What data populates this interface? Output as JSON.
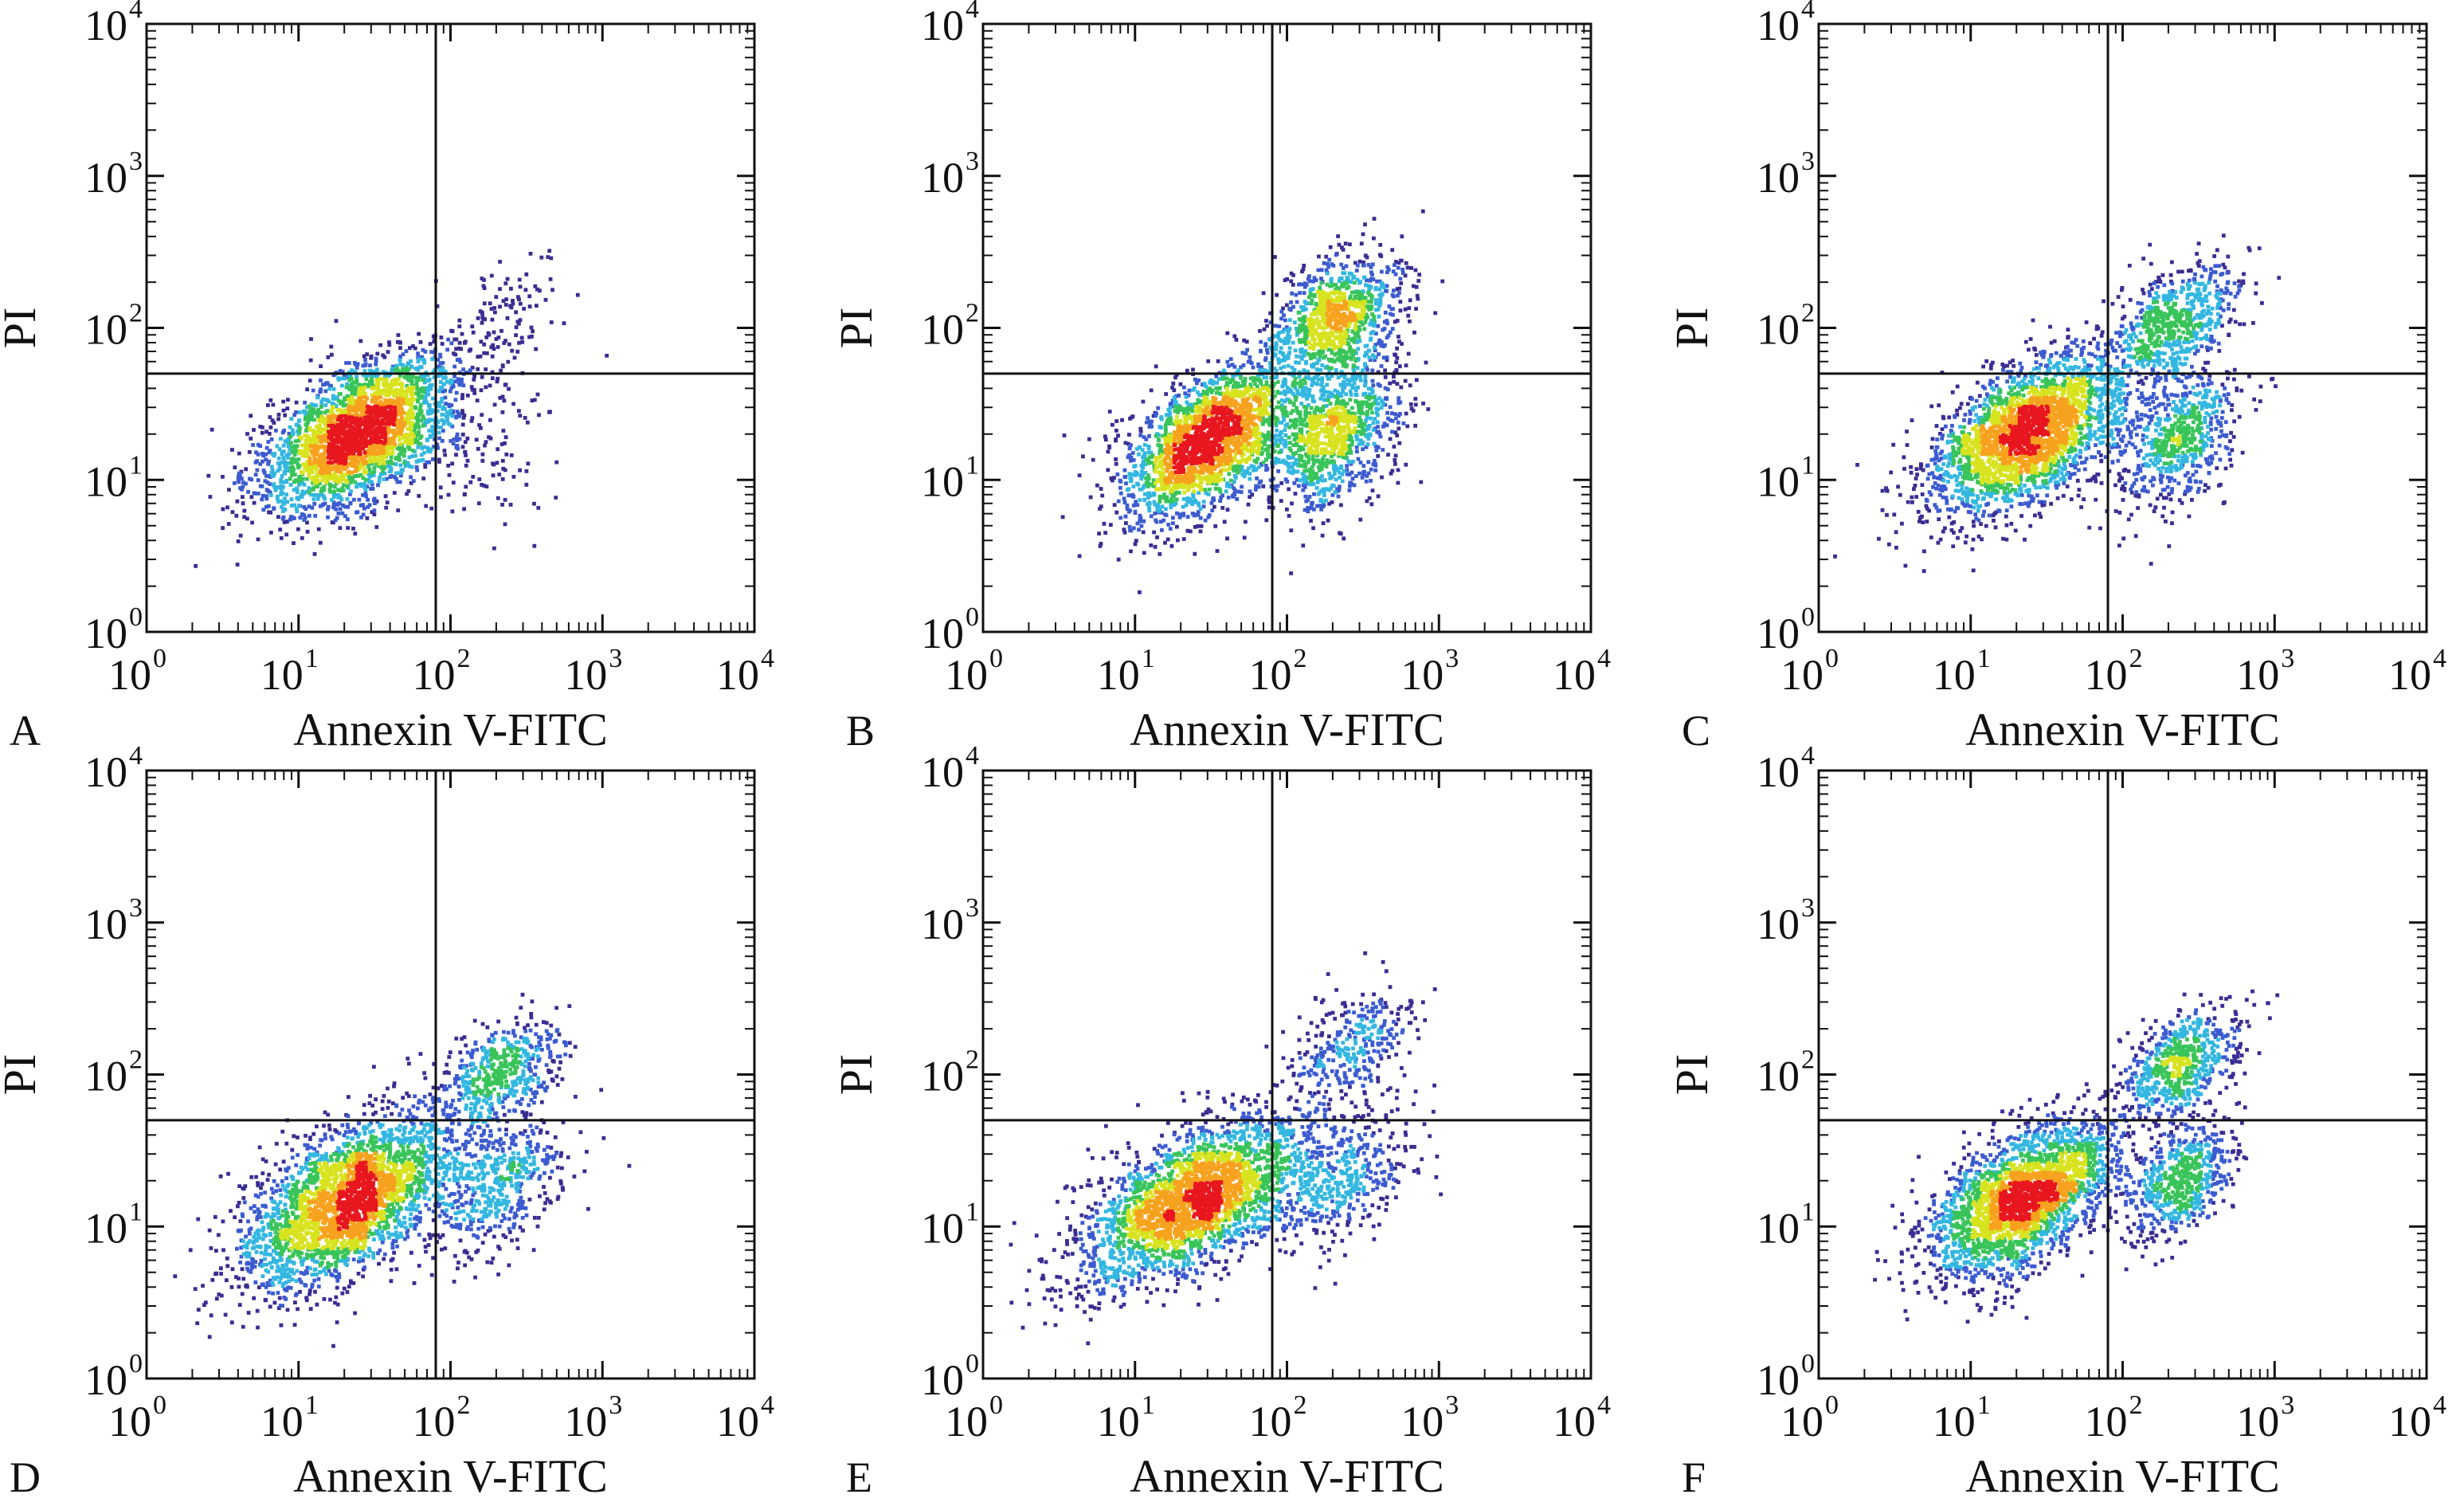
{
  "figure": {
    "colors": {
      "frame": "#111111",
      "gate": "#111111",
      "density": [
        "#3a2d92",
        "#3c5bd0",
        "#33b7e0",
        "#39c45a",
        "#d8e31f",
        "#f7a21e",
        "#e8161e"
      ]
    }
  },
  "chart_data": [
    {
      "panel": "A",
      "type": "scatter",
      "style": "density",
      "xlabel": "Annexin V-FITC",
      "ylabel": "PI",
      "xscale": "log",
      "yscale": "log",
      "xlim": [
        1,
        10000
      ],
      "ylim": [
        1,
        10000
      ],
      "ticks": [
        {
          "base": "10",
          "exp": "0"
        },
        {
          "base": "10",
          "exp": "1"
        },
        {
          "base": "10",
          "exp": "2"
        },
        {
          "base": "10",
          "exp": "3"
        },
        {
          "base": "10",
          "exp": "4"
        }
      ],
      "gate": {
        "x": 80,
        "y": 50
      },
      "populations": [
        {
          "quadrant": "lower-left",
          "center": [
            25,
            20
          ],
          "spread": [
            0.33,
            0.26
          ],
          "rho": 0.55,
          "points": 2600
        },
        {
          "quadrant": "lower-right",
          "center": [
            160,
            18
          ],
          "spread": [
            0.28,
            0.3
          ],
          "rho": 0.3,
          "points": 110
        },
        {
          "quadrant": "upper-right",
          "center": [
            210,
            110
          ],
          "spread": [
            0.22,
            0.22
          ],
          "rho": 0.5,
          "points": 120
        }
      ]
    },
    {
      "panel": "B",
      "type": "scatter",
      "style": "density",
      "xlabel": "Annexin V-FITC",
      "ylabel": "PI",
      "xscale": "log",
      "yscale": "log",
      "xlim": [
        1,
        10000
      ],
      "ylim": [
        1,
        10000
      ],
      "ticks": [
        {
          "base": "10",
          "exp": "0"
        },
        {
          "base": "10",
          "exp": "1"
        },
        {
          "base": "10",
          "exp": "2"
        },
        {
          "base": "10",
          "exp": "3"
        },
        {
          "base": "10",
          "exp": "4"
        }
      ],
      "gate": {
        "x": 80,
        "y": 50
      },
      "populations": [
        {
          "quadrant": "lower-left",
          "center": [
            32,
            18
          ],
          "spread": [
            0.3,
            0.26
          ],
          "rho": 0.55,
          "points": 2200
        },
        {
          "quadrant": "lower-right",
          "center": [
            210,
            20
          ],
          "spread": [
            0.22,
            0.25
          ],
          "rho": 0.4,
          "points": 950
        },
        {
          "quadrant": "upper-right",
          "center": [
            210,
            115
          ],
          "spread": [
            0.22,
            0.2
          ],
          "rho": 0.4,
          "points": 950
        }
      ]
    },
    {
      "panel": "C",
      "type": "scatter",
      "style": "density",
      "xlabel": "Annexin V-FITC",
      "ylabel": "PI",
      "xscale": "log",
      "yscale": "log",
      "xlim": [
        1,
        10000
      ],
      "ylim": [
        1,
        10000
      ],
      "ticks": [
        {
          "base": "10",
          "exp": "0"
        },
        {
          "base": "10",
          "exp": "1"
        },
        {
          "base": "10",
          "exp": "2"
        },
        {
          "base": "10",
          "exp": "3"
        },
        {
          "base": "10",
          "exp": "4"
        }
      ],
      "gate": {
        "x": 80,
        "y": 50
      },
      "populations": [
        {
          "quadrant": "lower-left",
          "center": [
            24,
            20
          ],
          "spread": [
            0.33,
            0.27
          ],
          "rho": 0.55,
          "points": 2600
        },
        {
          "quadrant": "lower-right",
          "center": [
            230,
            18
          ],
          "spread": [
            0.2,
            0.22
          ],
          "rho": 0.4,
          "points": 650
        },
        {
          "quadrant": "upper-right",
          "center": [
            220,
            110
          ],
          "spread": [
            0.2,
            0.2
          ],
          "rho": 0.45,
          "points": 650
        }
      ]
    },
    {
      "panel": "D",
      "type": "scatter",
      "style": "density",
      "xlabel": "Annexin V-FITC",
      "ylabel": "PI",
      "xscale": "log",
      "yscale": "log",
      "xlim": [
        1,
        10000
      ],
      "ylim": [
        1,
        10000
      ],
      "ticks": [
        {
          "base": "10",
          "exp": "0"
        },
        {
          "base": "10",
          "exp": "1"
        },
        {
          "base": "10",
          "exp": "2"
        },
        {
          "base": "10",
          "exp": "3"
        },
        {
          "base": "10",
          "exp": "4"
        }
      ],
      "gate": {
        "x": 80,
        "y": 50
      },
      "populations": [
        {
          "quadrant": "lower-left",
          "center": [
            22,
            15
          ],
          "spread": [
            0.35,
            0.28
          ],
          "rho": 0.55,
          "points": 2700
        },
        {
          "quadrant": "lower-right",
          "center": [
            210,
            18
          ],
          "spread": [
            0.22,
            0.22
          ],
          "rho": 0.4,
          "points": 480
        },
        {
          "quadrant": "upper-right",
          "center": [
            210,
            100
          ],
          "spread": [
            0.2,
            0.18
          ],
          "rho": 0.45,
          "points": 520
        }
      ]
    },
    {
      "panel": "E",
      "type": "scatter",
      "style": "density",
      "xlabel": "Annexin V-FITC",
      "ylabel": "PI",
      "xscale": "log",
      "yscale": "log",
      "xlim": [
        1,
        10000
      ],
      "ylim": [
        1,
        10000
      ],
      "ticks": [
        {
          "base": "10",
          "exp": "0"
        },
        {
          "base": "10",
          "exp": "1"
        },
        {
          "base": "10",
          "exp": "2"
        },
        {
          "base": "10",
          "exp": "3"
        },
        {
          "base": "10",
          "exp": "4"
        }
      ],
      "gate": {
        "x": 80,
        "y": 50
      },
      "populations": [
        {
          "quadrant": "lower-left",
          "center": [
            25,
            15
          ],
          "spread": [
            0.38,
            0.28
          ],
          "rho": 0.6,
          "points": 2600
        },
        {
          "quadrant": "lower-right",
          "center": [
            230,
            20
          ],
          "spread": [
            0.22,
            0.22
          ],
          "rho": 0.4,
          "points": 420
        },
        {
          "quadrant": "upper-right",
          "center": [
            260,
            150
          ],
          "spread": [
            0.2,
            0.18
          ],
          "rho": 0.45,
          "points": 320
        }
      ]
    },
    {
      "panel": "F",
      "type": "scatter",
      "style": "density",
      "xlabel": "Annexin V-FITC",
      "ylabel": "PI",
      "xscale": "log",
      "yscale": "log",
      "xlim": [
        1,
        10000
      ],
      "ylim": [
        1,
        10000
      ],
      "ticks": [
        {
          "base": "10",
          "exp": "0"
        },
        {
          "base": "10",
          "exp": "1"
        },
        {
          "base": "10",
          "exp": "2"
        },
        {
          "base": "10",
          "exp": "3"
        },
        {
          "base": "10",
          "exp": "4"
        }
      ],
      "gate": {
        "x": 80,
        "y": 50
      },
      "populations": [
        {
          "quadrant": "lower-left",
          "center": [
            22,
            15
          ],
          "spread": [
            0.3,
            0.26
          ],
          "rho": 0.55,
          "points": 2500
        },
        {
          "quadrant": "lower-right",
          "center": [
            240,
            20
          ],
          "spread": [
            0.18,
            0.2
          ],
          "rho": 0.4,
          "points": 600
        },
        {
          "quadrant": "upper-right",
          "center": [
            250,
            120
          ],
          "spread": [
            0.2,
            0.18
          ],
          "rho": 0.45,
          "points": 650
        }
      ]
    }
  ]
}
